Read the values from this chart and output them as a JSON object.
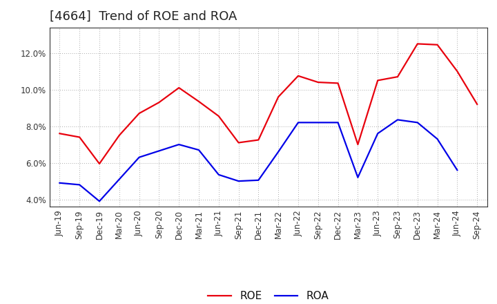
{
  "title": "[4664]  Trend of ROE and ROA",
  "x_labels": [
    "Jun-19",
    "Sep-19",
    "Dec-19",
    "Mar-20",
    "Jun-20",
    "Sep-20",
    "Dec-20",
    "Mar-21",
    "Jun-21",
    "Sep-21",
    "Dec-21",
    "Mar-22",
    "Jun-22",
    "Sep-22",
    "Dec-22",
    "Mar-23",
    "Jun-23",
    "Sep-23",
    "Dec-23",
    "Mar-24",
    "Jun-24",
    "Sep-24"
  ],
  "roe": [
    7.6,
    7.4,
    5.95,
    7.5,
    8.7,
    9.3,
    10.1,
    9.35,
    8.55,
    7.1,
    7.25,
    9.6,
    10.75,
    10.4,
    10.35,
    7.0,
    10.5,
    10.7,
    12.5,
    12.45,
    11.0,
    9.2
  ],
  "roa": [
    4.9,
    4.8,
    3.9,
    5.1,
    6.3,
    6.65,
    7.0,
    6.7,
    5.35,
    5.0,
    5.05,
    6.6,
    8.2,
    8.2,
    8.2,
    5.2,
    7.6,
    8.35,
    8.2,
    7.3,
    5.6,
    null
  ],
  "roe_color": "#e8000d",
  "roa_color": "#0000e8",
  "ylim_min": 3.6,
  "ylim_max": 13.4,
  "yticks": [
    4.0,
    6.0,
    8.0,
    10.0,
    12.0
  ],
  "background_color": "#ffffff",
  "plot_bg_color": "#ffffff",
  "grid_color": "#aaaaaa",
  "title_fontsize": 13,
  "legend_fontsize": 11,
  "tick_fontsize": 8.5
}
